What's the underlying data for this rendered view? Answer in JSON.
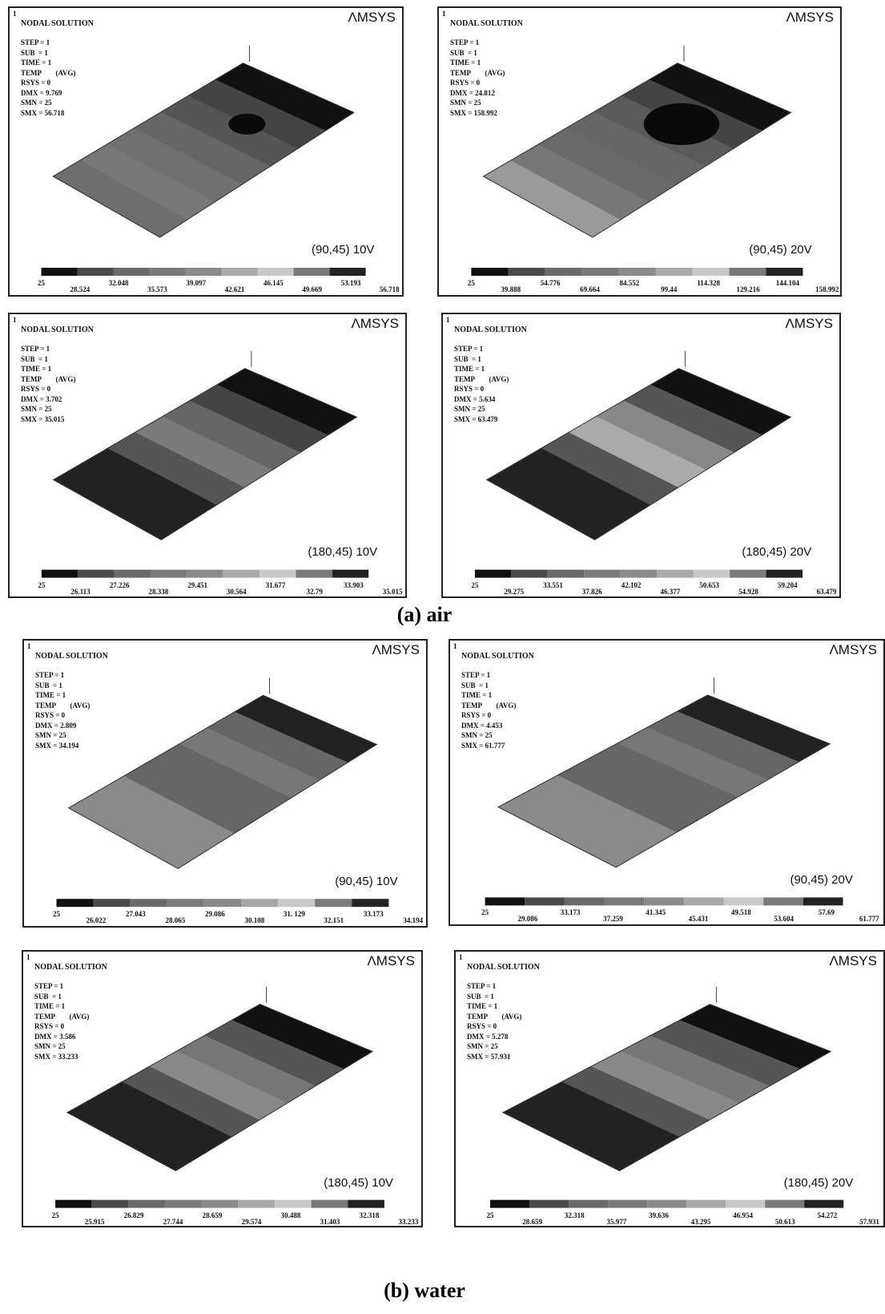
{
  "panels": [
    {
      "number": "1",
      "title": "NODAL SOLUTION",
      "logo": "ΛMSYS",
      "stats": [
        "STEP = 1",
        "SUB  = 1",
        "TIME = 1",
        "TEMP        (AVG)",
        "RSYS = 0",
        "DMX = 9.769",
        "SMN = 25",
        "SMX = 56.718"
      ],
      "label": "(90,45) 10V",
      "legend": [
        "25",
        "28.524",
        "32.048",
        "35.573",
        "39.097",
        "42.621",
        "46.145",
        "49.669",
        "53.193",
        "56.718"
      ]
    },
    {
      "number": "1",
      "title": "NODAL SOLUTION",
      "logo": "ΛMSYS",
      "stats": [
        "STEP = 1",
        "SUB  = 1",
        "TIME = 1",
        "TEMP        (AVG)",
        "RSYS = 0",
        "DMX = 24.812",
        "SMN = 25",
        "SMX = 158.992"
      ],
      "label": "(90,45) 20V",
      "legend": [
        "25",
        "39.888",
        "54.776",
        "69.664",
        "84.552",
        "99.44",
        "114.328",
        "129.216",
        "144.104",
        "158.992"
      ]
    },
    {
      "number": "1",
      "title": "NODAL SOLUTION",
      "logo": "ΛMSYS",
      "stats": [
        "STEP = 1",
        "SUB  = 1",
        "TIME = 1",
        "TEMP        (AVG)",
        "RSYS = 0",
        "DMX = 3.702",
        "SMN = 25",
        "SMX = 35.015"
      ],
      "label": "(180,45) 10V",
      "legend": [
        "25",
        "26.113",
        "27.226",
        "28.338",
        "29.451",
        "30.564",
        "31.677",
        "32.79",
        "33.903",
        "35.015"
      ]
    },
    {
      "number": "1",
      "title": "NODAL SOLUTION",
      "logo": "ΛMSYS",
      "stats": [
        "STEP = 1",
        "SUB  = 1",
        "TIME = 1",
        "TEMP        (AVG)",
        "RSYS = 0",
        "DMX = 5.634",
        "SMN = 25",
        "SMX = 63.479"
      ],
      "label": "(180,45) 20V",
      "legend": [
        "25",
        "29.275",
        "33.551",
        "37.826",
        "42.102",
        "46.377",
        "50.653",
        "54.928",
        "59.204",
        "63.479"
      ]
    },
    {
      "number": "1",
      "title": "NODAL SOLUTION",
      "logo": "ΛMSYS",
      "stats": [
        "STEP = 1",
        "SUB  = 1",
        "TIME = 1",
        "TEMP        (AVG)",
        "RSYS = 0",
        "DMX = 2.809",
        "SMN = 25",
        "SMX = 34.194"
      ],
      "label": "(90,45) 10V",
      "legend": [
        "25",
        "26.022",
        "27.043",
        "28.065",
        "29.086",
        "30.108",
        "31. 129",
        "32.151",
        "33.173",
        "34.194"
      ]
    },
    {
      "number": "1",
      "title": "NODAL SOLUTION",
      "logo": "ΛMSYS",
      "stats": [
        "STEP = 1",
        "SUB  = 1",
        "TIME = 1",
        "TEMP        (AVG)",
        "RSYS = 0",
        "DMX = 4.453",
        "SMN = 25",
        "SMX = 61.777"
      ],
      "label": "(90,45) 20V",
      "legend": [
        "25",
        "29.086",
        "33.173",
        "37.259",
        "41.345",
        "45.431",
        "49.518",
        "53.604",
        "57.69",
        "61.777"
      ]
    },
    {
      "number": "1",
      "title": "NODAL SOLUTION",
      "logo": "ΛMSYS",
      "stats": [
        "STEP = 1",
        "SUB  = 1",
        "TIME = 1",
        "TEMP        (AVG)",
        "RSYS = 0",
        "DMX = 3.586",
        "SMN = 25",
        "SMX = 33.233"
      ],
      "label": "(180,45) 10V",
      "legend": [
        "25",
        "25.915",
        "26.829",
        "27.744",
        "28.659",
        "29.574",
        "30.488",
        "31.403",
        "32.318",
        "33.233"
      ]
    },
    {
      "number": "1",
      "title": "NODAL SOLUTION",
      "logo": "ΛMSYS",
      "stats": [
        "STEP = 1",
        "SUB  = 1",
        "TIME = 1",
        "TEMP        (AVG)",
        "RSYS = 0",
        "DMX = 5.278",
        "SMN = 25",
        "SMX = 57.931"
      ],
      "label": "(180,45) 20V",
      "legend": [
        "25",
        "28.659",
        "32.318",
        "35.977",
        "39.636",
        "43.295",
        "46.954",
        "50.613",
        "54.272",
        "57.931"
      ]
    }
  ],
  "captions": [
    "(a) air",
    "(b) water"
  ]
}
